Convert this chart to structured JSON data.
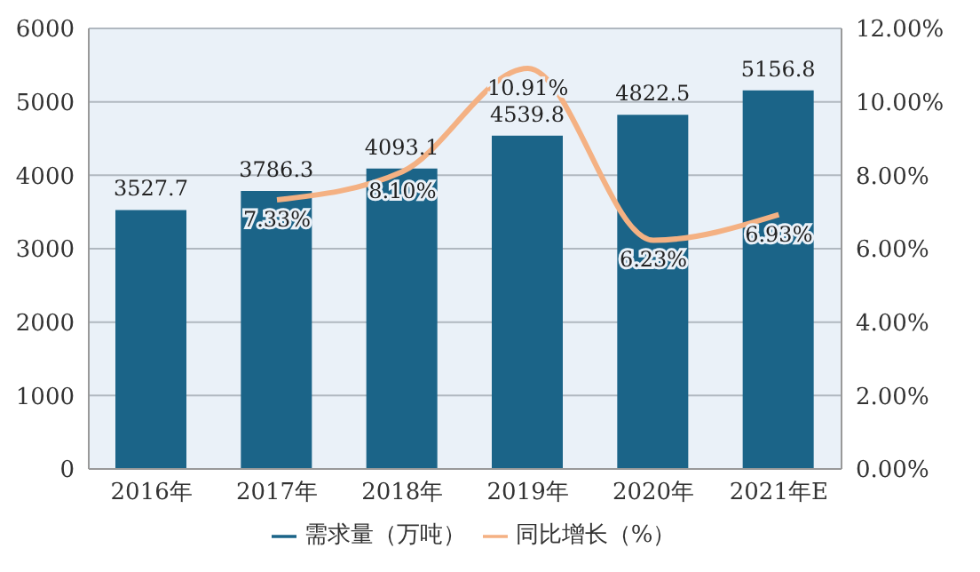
{
  "chart_data": {
    "type": "bar",
    "categories": [
      "2016年",
      "2017年",
      "2018年",
      "2019年",
      "2020年",
      "2021年E"
    ],
    "series": [
      {
        "name": "需求量（万吨）",
        "color": "#1b6488",
        "values": [
          3527.7,
          3786.3,
          4093.1,
          4539.8,
          4822.5,
          5156.8
        ],
        "value_labels": [
          "3527.7",
          "3786.3",
          "4093.1",
          "4539.8",
          "4822.5",
          "5156.8"
        ]
      },
      {
        "name": "同比增长（%）",
        "type": "line",
        "axis": "y2",
        "color": "#f4b183",
        "values": [
          null,
          7.33,
          8.1,
          10.91,
          6.23,
          6.93
        ],
        "value_labels": [
          null,
          "7.33%",
          "8.10%",
          "10.91%",
          "6.23%",
          "6.93%"
        ]
      }
    ],
    "ylim": [
      0,
      6000
    ],
    "yticks": [
      0,
      1000,
      2000,
      3000,
      4000,
      5000,
      6000
    ],
    "y2lim": [
      0,
      12
    ],
    "y2ticks": [
      {
        "value": 0,
        "label": "0.00%"
      },
      {
        "value": 2,
        "label": "2.00%"
      },
      {
        "value": 4,
        "label": "4.00%"
      },
      {
        "value": 6,
        "label": "6.00%"
      },
      {
        "value": 8,
        "label": "8.00%"
      },
      {
        "value": 10,
        "label": "10.00%"
      },
      {
        "value": 12,
        "label": "12.00%"
      }
    ],
    "grid": "y",
    "legend": "bottom",
    "marker": "none"
  }
}
